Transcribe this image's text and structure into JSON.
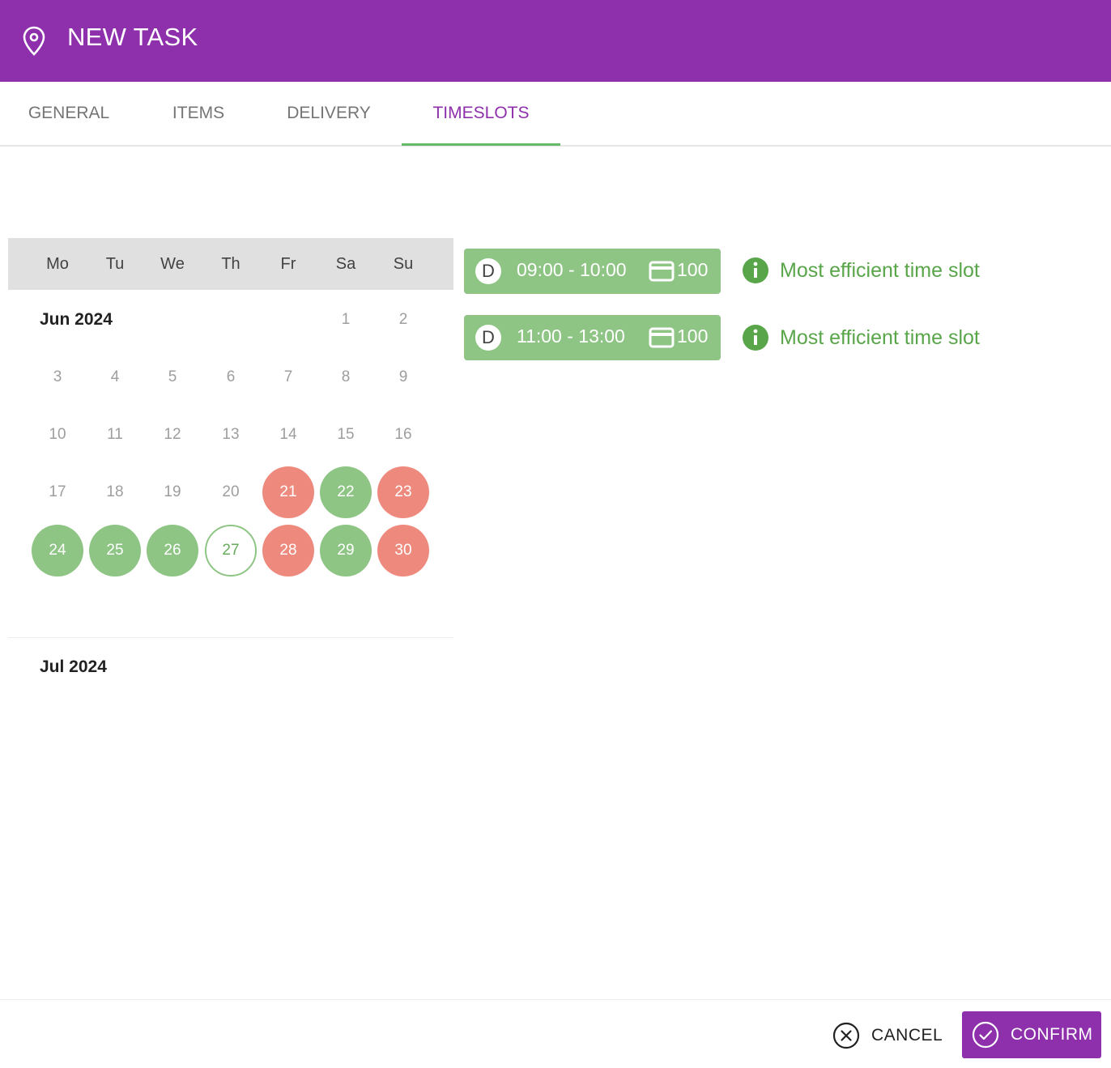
{
  "header": {
    "title": "NEW TASK",
    "icon": "map-pin-icon"
  },
  "tabs": [
    {
      "label": "GENERAL",
      "active": false
    },
    {
      "label": "ITEMS",
      "active": false
    },
    {
      "label": "DELIVERY",
      "active": false
    },
    {
      "label": "TIMESLOTS",
      "active": true
    }
  ],
  "calendar": {
    "weekdays": [
      "Mo",
      "Tu",
      "We",
      "Th",
      "Fr",
      "Sa",
      "Su"
    ],
    "months": [
      {
        "label": "Jun 2024",
        "days": [
          {
            "n": "1",
            "state": "none"
          },
          {
            "n": "2",
            "state": "none"
          },
          {
            "n": "3",
            "state": "none"
          },
          {
            "n": "4",
            "state": "none"
          },
          {
            "n": "5",
            "state": "none"
          },
          {
            "n": "6",
            "state": "none"
          },
          {
            "n": "7",
            "state": "none"
          },
          {
            "n": "8",
            "state": "none"
          },
          {
            "n": "9",
            "state": "none"
          },
          {
            "n": "10",
            "state": "none"
          },
          {
            "n": "11",
            "state": "none"
          },
          {
            "n": "12",
            "state": "none"
          },
          {
            "n": "13",
            "state": "none"
          },
          {
            "n": "14",
            "state": "none"
          },
          {
            "n": "15",
            "state": "none"
          },
          {
            "n": "16",
            "state": "none"
          },
          {
            "n": "17",
            "state": "none"
          },
          {
            "n": "18",
            "state": "none"
          },
          {
            "n": "19",
            "state": "none"
          },
          {
            "n": "20",
            "state": "none"
          },
          {
            "n": "21",
            "state": "red"
          },
          {
            "n": "22",
            "state": "green"
          },
          {
            "n": "23",
            "state": "red"
          },
          {
            "n": "24",
            "state": "green"
          },
          {
            "n": "25",
            "state": "green"
          },
          {
            "n": "26",
            "state": "green"
          },
          {
            "n": "27",
            "state": "selected"
          },
          {
            "n": "28",
            "state": "red"
          },
          {
            "n": "29",
            "state": "green"
          },
          {
            "n": "30",
            "state": "red"
          }
        ]
      },
      {
        "label": "Jul 2024",
        "days": []
      }
    ]
  },
  "timeslots": [
    {
      "badge": "D",
      "time": "09:00 - 10:00",
      "capacity": "100",
      "note": "Most efficient time slot"
    },
    {
      "badge": "D",
      "time": "11:00 - 13:00",
      "capacity": "100",
      "note": "Most efficient time slot"
    }
  ],
  "footer": {
    "cancel_label": "CANCEL",
    "confirm_label": "CONFIRM"
  },
  "colors": {
    "brand": "#8e30ab",
    "available": "#8ec585",
    "unavailable": "#ee8a7d",
    "note_text": "#59a54a"
  }
}
